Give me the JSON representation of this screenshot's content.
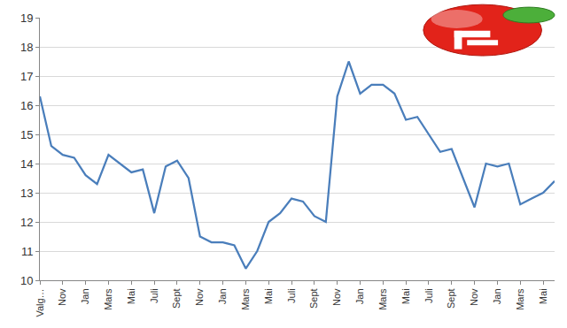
{
  "chart_data": {
    "type": "line",
    "categories": [
      "Valg…",
      null,
      "Nov",
      null,
      "Jan",
      null,
      "Mars",
      null,
      "Mai",
      null,
      "Juli",
      null,
      "Sept",
      null,
      "Nov",
      null,
      "Jan",
      null,
      "Mars",
      null,
      "Mai",
      null,
      "Juli",
      null,
      "Sept",
      null,
      "Nov",
      null,
      "Jan",
      null,
      "Mars",
      null,
      "Mai",
      null,
      "Juli",
      null,
      "Sept",
      null,
      "Nov",
      null,
      "Jan",
      null,
      "Mars",
      null,
      "Mai",
      null
    ],
    "values": [
      16.3,
      14.6,
      14.3,
      14.2,
      13.6,
      13.3,
      14.3,
      14.0,
      13.7,
      13.8,
      12.3,
      13.9,
      14.1,
      13.5,
      11.5,
      11.3,
      11.3,
      11.2,
      10.4,
      11.0,
      12.0,
      12.3,
      12.8,
      12.7,
      12.2,
      12.0,
      16.3,
      17.5,
      16.4,
      16.7,
      16.7,
      16.4,
      15.5,
      15.6,
      15.0,
      14.4,
      14.5,
      13.5,
      12.5,
      14.0,
      13.9,
      14.0,
      12.6,
      12.8,
      13.0,
      13.4
    ],
    "color": "#4a7ebb",
    "ylim": [
      10,
      19
    ],
    "yticks": [
      10,
      11,
      12,
      13,
      14,
      15,
      16,
      17,
      18,
      19
    ],
    "grid": true
  }
}
